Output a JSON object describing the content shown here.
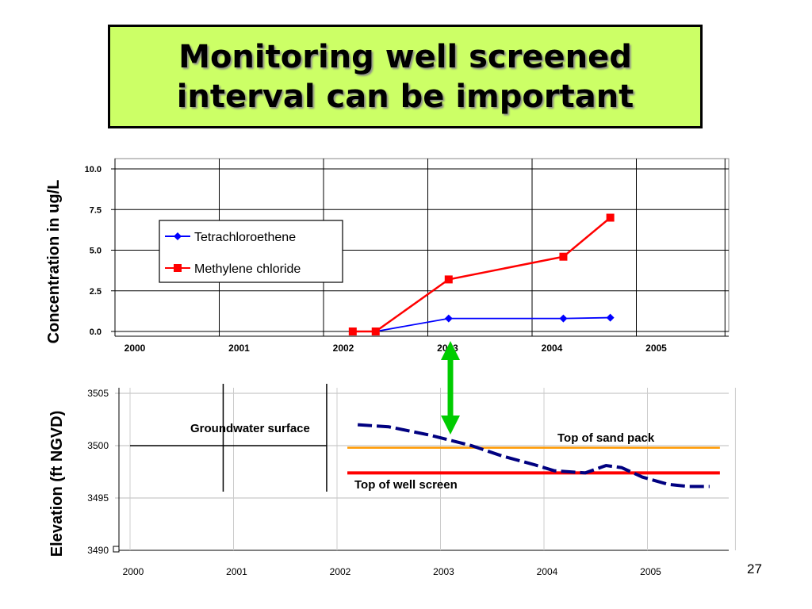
{
  "slide": {
    "title_line1": "Monitoring well screened",
    "title_line2": "interval can be important",
    "title_bg": "#ccff66",
    "page_number": "27"
  },
  "chart_data": [
    {
      "type": "line",
      "ylabel": "Concentration in ug/L",
      "xlabel": "",
      "ylim": [
        0,
        10
      ],
      "yticks": [
        "10.0",
        "7.5",
        "5.0",
        "2.5",
        "0.0"
      ],
      "xticks": [
        "2000",
        "2001",
        "2002",
        "2003",
        "2004",
        "2005"
      ],
      "grid": true,
      "legend": "upper-left",
      "series": [
        {
          "name": "Tetrachloroethene",
          "color": "#0000ff",
          "marker": "diamond",
          "x": [
            2002.28,
            2002.5,
            2003.2,
            2004.3,
            2004.75
          ],
          "y": [
            0.0,
            0.0,
            0.8,
            0.8,
            0.85
          ]
        },
        {
          "name": "Methylene chloride",
          "color": "#ff0000",
          "marker": "square",
          "x": [
            2002.28,
            2002.5,
            2003.2,
            2004.3,
            2004.75
          ],
          "y": [
            0.0,
            0.0,
            3.2,
            4.6,
            7.0
          ]
        }
      ]
    },
    {
      "type": "line",
      "ylabel": "Elevation (ft NGVD)",
      "ylim": [
        3490,
        3505
      ],
      "yticks": [
        "3505",
        "3500",
        "3495",
        "3490"
      ],
      "xticks": [
        "2000",
        "2001",
        "2002",
        "2003",
        "2004",
        "2005"
      ],
      "grid": true,
      "series": [
        {
          "name": "Groundwater surface",
          "color": "#000080",
          "style": "dashed",
          "x": [
            2002.2,
            2002.5,
            2002.9,
            2003.3,
            2003.6,
            2003.9,
            2004.1,
            2004.4,
            2004.6,
            2004.75,
            2004.95,
            2005.2,
            2005.4,
            2005.6
          ],
          "y": [
            3502.0,
            3501.8,
            3501.0,
            3500.0,
            3499.0,
            3498.2,
            3497.6,
            3497.4,
            3498.1,
            3497.9,
            3497.0,
            3496.3,
            3496.1,
            3496.1
          ]
        }
      ],
      "reference_lines": [
        {
          "label": "Top of sand pack",
          "y": 3499.8,
          "x": [
            2002.1,
            2005.7
          ],
          "color": "#ff9900"
        },
        {
          "label": "Top of well screen",
          "y": 3497.4,
          "x": [
            2002.1,
            2005.7
          ],
          "color": "#ff0000"
        }
      ]
    }
  ],
  "arrow": {
    "color": "#00cc00"
  }
}
